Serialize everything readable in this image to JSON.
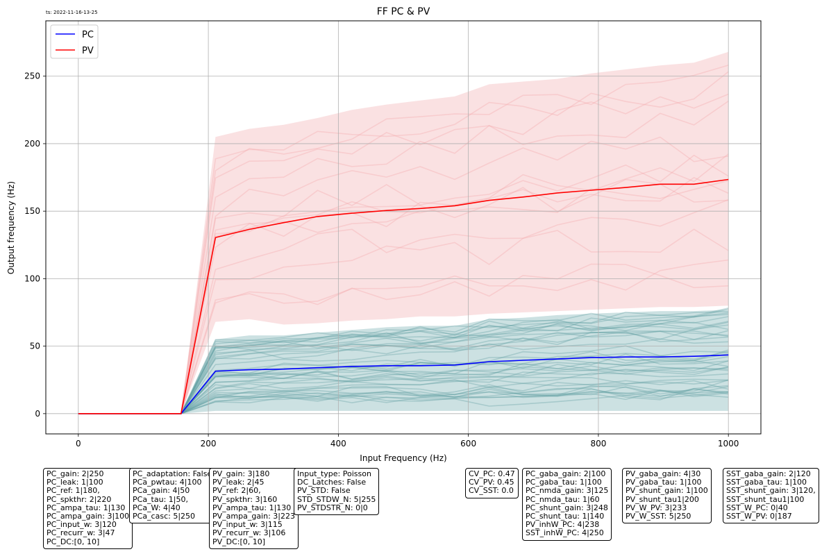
{
  "timestamp": "ts: 2022-11-16-13-25",
  "chart_data": {
    "type": "line",
    "title": "FF PC & PV",
    "xlabel": "Input Frequency (Hz)",
    "ylabel": "Output frequency (Hz)",
    "xlim": [
      -50,
      1050
    ],
    "ylim": [
      -15,
      291
    ],
    "xticks": [
      0,
      200,
      400,
      600,
      800,
      1000
    ],
    "yticks": [
      0,
      50,
      100,
      150,
      200,
      250
    ],
    "grid": true,
    "legend": "top-left",
    "x": [
      0,
      53,
      105,
      158,
      211,
      263,
      316,
      368,
      421,
      474,
      526,
      579,
      632,
      684,
      737,
      789,
      842,
      895,
      947,
      1000
    ],
    "series": [
      {
        "name": "PC",
        "color": "#0000ff",
        "values": [
          0,
          0,
          0,
          0,
          31.5,
          32.5,
          33,
          34,
          35,
          35.5,
          35.5,
          36,
          38.5,
          39.5,
          40.5,
          41.5,
          42,
          42,
          42.5,
          43.5
        ],
        "band_lower": [
          0,
          0,
          0,
          0,
          2,
          2,
          2,
          2,
          2,
          2,
          2,
          2,
          2,
          2,
          2,
          2,
          2,
          2,
          2,
          2
        ],
        "band_upper": [
          0,
          0,
          0,
          0,
          55,
          58,
          58,
          60,
          62,
          64,
          65,
          65,
          70,
          71,
          73,
          74,
          75,
          76,
          76,
          77
        ],
        "band_color": "#8fbcbf"
      },
      {
        "name": "PV",
        "color": "#ff0000",
        "values": [
          0,
          0,
          0,
          0,
          130.5,
          136.5,
          141.5,
          146,
          148.5,
          150.5,
          152,
          154,
          158,
          160.5,
          163.5,
          165.5,
          167.5,
          170,
          170,
          173.5
        ],
        "band_lower": [
          0,
          0,
          0,
          0,
          68,
          70,
          66,
          67,
          69,
          70,
          72,
          72,
          74,
          75,
          76,
          77,
          78,
          79,
          79,
          80
        ],
        "band_upper": [
          0,
          0,
          0,
          0,
          205,
          211,
          214,
          219,
          225,
          229,
          232,
          235,
          244,
          246,
          248,
          252,
          255,
          258,
          260,
          268
        ],
        "band_color": "#f7cdcf"
      }
    ],
    "param_boxes": [
      "PC_gain: 2|250\nPC_leak: 1|100\nPC_ref: 1|180,\nPC_spkthr: 2|220\nPC_ampa_tau: 1|130\nPC_ampa_gain: 3|100\nPC_input_w: 3|120\nPC_recurr_w: 3|47\nPC_DC:[0, 10]",
      "PC_adaptation: False\nPCa_pwtau: 4|100\nPCa_gain: 4|50\nPCa_tau: 1|50,\nPCa_W: 4|40\nPCa_casc: 5|250",
      "PV_gain: 3|180\nPV_leak: 2|45\nPV_ref: 2|60,\nPV_spkthr: 3|160\nPV_ampa_tau: 1|130\nPV_ampa_gain: 3|223\nPV_input_w: 3|115\nPV_recurr_w: 3|106\nPV_DC:[0, 10]",
      "Input_type: Poisson\nDC_Latches: False\nPV_STD: False\nSTD_STDW_N: 5|255\nPV_STDSTR_N: 0|0",
      "CV_PC: 0.47\nCV_PV: 0.45\nCV_SST: 0.0",
      "PC_gaba_gain: 2|100\nPC_gaba_tau: 1|100\nPC_nmda_gain: 3|125\nPC_nmda_tau: 1|60\nPC_shunt_gain: 3|248\nPC_shunt_tau: 1|140\nPV_inhW_PC: 4|238\nSST_inhW_PC: 4|250",
      "PV_gaba_gain: 4|30\nPV_gaba_tau: 1|100\nPV_shunt_gain: 1|100\nPV_shunt_tau1|200\nPV_W_PV: 3|233\nPV_W_SST: 5|250",
      "SST_gaba_gain: 2|120\nSST_gaba_tau: 1|100\nSST_shunt_gain: 3|120,\nSST_shunt_tau1|100\nSST_W_PC: 0|40\nSST_W_PV: 0|187"
    ]
  }
}
